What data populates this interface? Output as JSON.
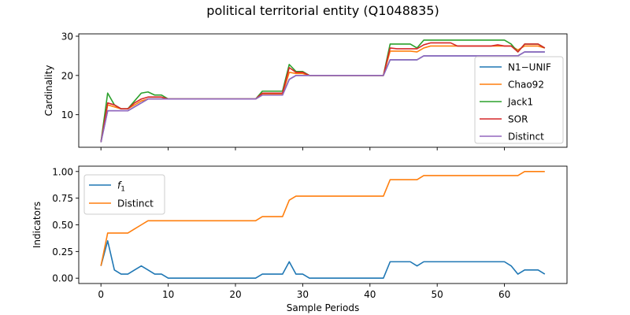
{
  "title": "political territorial entity (Q1048835)",
  "chart_data": [
    {
      "type": "line",
      "ylabel": "Cardinality",
      "xlabel": "",
      "xlim": [
        -3.3,
        69.3
      ],
      "ylim": [
        1.7,
        30.6
      ],
      "xticks": [
        0,
        10,
        20,
        30,
        40,
        50,
        60
      ],
      "yticks": [
        10,
        20,
        30
      ],
      "legend": "right",
      "series": [
        {
          "name": "N1−UNIF",
          "color": "#1f77b4",
          "values": [
            3,
            11,
            11,
            11,
            11,
            12,
            13,
            14,
            14,
            14,
            14,
            14,
            14,
            14,
            14,
            14,
            14,
            14,
            14,
            14,
            14,
            14,
            14,
            14,
            15,
            15,
            15,
            15,
            19,
            20,
            20,
            20,
            20,
            20,
            20,
            20,
            20,
            20,
            20,
            20,
            20,
            20,
            20,
            24,
            24,
            24,
            24,
            24,
            25,
            25,
            25,
            25,
            25,
            25,
            25,
            25,
            25,
            25,
            25,
            25,
            25,
            25,
            25,
            26,
            26,
            26,
            26
          ]
        },
        {
          "name": "Chao92",
          "color": "#ff7f0e",
          "values": [
            3,
            12.5,
            12,
            11.5,
            11.5,
            12.5,
            13.5,
            14,
            14,
            14,
            14,
            14,
            14,
            14,
            14,
            14,
            14,
            14,
            14,
            14,
            14,
            14,
            14,
            14,
            15.3,
            15.3,
            15.3,
            15.3,
            20.8,
            20.5,
            20.5,
            20,
            20,
            20,
            20,
            20,
            20,
            20,
            20,
            20,
            20,
            20,
            20,
            26.2,
            26.2,
            26.2,
            26.2,
            26,
            27,
            27.5,
            27.5,
            27.5,
            27.5,
            27.5,
            27.5,
            27.5,
            27.5,
            27.5,
            27.5,
            27.5,
            27.5,
            27.5,
            26.5,
            27.5,
            27.5,
            27.5,
            27
          ]
        },
        {
          "name": "Jack1",
          "color": "#2ca02c",
          "values": [
            3,
            15.5,
            12.5,
            11.5,
            11.5,
            13.5,
            15.5,
            15.8,
            15,
            15,
            14,
            14,
            14,
            14,
            14,
            14,
            14,
            14,
            14,
            14,
            14,
            14,
            14,
            14,
            16,
            16,
            16,
            16,
            22.8,
            21,
            21,
            20,
            20,
            20,
            20,
            20,
            20,
            20,
            20,
            20,
            20,
            20,
            20,
            28,
            28,
            28,
            28,
            27,
            29,
            29,
            29,
            29,
            29,
            29,
            29,
            29,
            29,
            29,
            29,
            29,
            29,
            28,
            26,
            28,
            28,
            28,
            27
          ]
        },
        {
          "name": "SOR",
          "color": "#d62728",
          "values": [
            3,
            13,
            12.5,
            11.5,
            11.5,
            13,
            14,
            14.5,
            14.5,
            14.5,
            14,
            14,
            14,
            14,
            14,
            14,
            14,
            14,
            14,
            14,
            14,
            14,
            14,
            14,
            15.5,
            15.5,
            15.5,
            15.5,
            22,
            20.8,
            20.8,
            20,
            20,
            20,
            20,
            20,
            20,
            20,
            20,
            20,
            20,
            20,
            20,
            27,
            26.8,
            26.8,
            26.8,
            26.8,
            27.8,
            28.3,
            28.3,
            28.3,
            28.3,
            27.5,
            27.5,
            27.5,
            27.5,
            27.5,
            27.5,
            27.8,
            27.5,
            27.5,
            26,
            28,
            28,
            28,
            27
          ]
        },
        {
          "name": "Distinct",
          "color": "#9467bd",
          "values": [
            3,
            11,
            11,
            11,
            11,
            12,
            13,
            14,
            14,
            14,
            14,
            14,
            14,
            14,
            14,
            14,
            14,
            14,
            14,
            14,
            14,
            14,
            14,
            14,
            15,
            15,
            15,
            15,
            19,
            20,
            20,
            20,
            20,
            20,
            20,
            20,
            20,
            20,
            20,
            20,
            20,
            20,
            20,
            24,
            24,
            24,
            24,
            24,
            25,
            25,
            25,
            25,
            25,
            25,
            25,
            25,
            25,
            25,
            25,
            25,
            25,
            25,
            25,
            26,
            26,
            26,
            26
          ]
        }
      ]
    },
    {
      "type": "line",
      "ylabel": "Indicators",
      "xlabel": "Sample Periods",
      "xlim": [
        -3.3,
        69.3
      ],
      "ylim": [
        -0.05,
        1.05
      ],
      "xticks": [
        0,
        10,
        20,
        30,
        40,
        50,
        60
      ],
      "ytick_labels": [
        "0.00",
        "0.25",
        "0.50",
        "0.75",
        "1.00"
      ],
      "yticks": [
        0,
        0.25,
        0.5,
        0.75,
        1.0
      ],
      "legend": "upper-left",
      "series": [
        {
          "name": "f1",
          "legend_main": "f",
          "legend_sub": "1",
          "color": "#1f77b4",
          "values": [
            0.115,
            0.35,
            0.077,
            0.038,
            0.038,
            0.077,
            0.115,
            0.077,
            0.038,
            0.038,
            0,
            0,
            0,
            0,
            0,
            0,
            0,
            0,
            0,
            0,
            0,
            0,
            0,
            0,
            0.038,
            0.038,
            0.038,
            0.038,
            0.154,
            0.038,
            0.038,
            0,
            0,
            0,
            0,
            0,
            0,
            0,
            0,
            0,
            0,
            0,
            0,
            0.154,
            0.154,
            0.154,
            0.154,
            0.115,
            0.154,
            0.154,
            0.154,
            0.154,
            0.154,
            0.154,
            0.154,
            0.154,
            0.154,
            0.154,
            0.154,
            0.154,
            0.154,
            0.115,
            0.038,
            0.077,
            0.077,
            0.077,
            0.038
          ]
        },
        {
          "name": "Distinct",
          "color": "#ff7f0e",
          "values": [
            0.115,
            0.423,
            0.423,
            0.423,
            0.423,
            0.462,
            0.5,
            0.538,
            0.538,
            0.538,
            0.538,
            0.538,
            0.538,
            0.538,
            0.538,
            0.538,
            0.538,
            0.538,
            0.538,
            0.538,
            0.538,
            0.538,
            0.538,
            0.538,
            0.577,
            0.577,
            0.577,
            0.577,
            0.731,
            0.769,
            0.769,
            0.769,
            0.769,
            0.769,
            0.769,
            0.769,
            0.769,
            0.769,
            0.769,
            0.769,
            0.769,
            0.769,
            0.769,
            0.923,
            0.923,
            0.923,
            0.923,
            0.923,
            0.962,
            0.962,
            0.962,
            0.962,
            0.962,
            0.962,
            0.962,
            0.962,
            0.962,
            0.962,
            0.962,
            0.962,
            0.962,
            0.962,
            0.962,
            1,
            1,
            1,
            1
          ]
        }
      ]
    }
  ]
}
